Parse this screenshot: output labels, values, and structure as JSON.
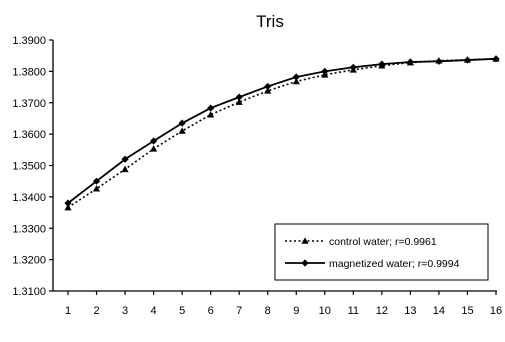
{
  "chart_data": {
    "type": "line",
    "title": "Tris",
    "xlabel": "",
    "ylabel": "",
    "categories": [
      "1",
      "2",
      "3",
      "4",
      "5",
      "6",
      "7",
      "8",
      "9",
      "10",
      "11",
      "12",
      "13",
      "14",
      "15",
      "16"
    ],
    "x": [
      1,
      2,
      3,
      4,
      5,
      6,
      7,
      8,
      9,
      10,
      11,
      12,
      13,
      14,
      15,
      16
    ],
    "ylim": [
      1.31,
      1.39
    ],
    "yticks": [
      "1.3100",
      "1.3200",
      "1.3300",
      "1.3400",
      "1.3500",
      "1.3600",
      "1.3700",
      "1.3800",
      "1.3900"
    ],
    "grid": false,
    "legend_position": "lower-right",
    "series": [
      {
        "name": "control water; r=0.9961",
        "style": "dotted",
        "marker": "triangle",
        "values": [
          1.3366,
          1.3426,
          1.3488,
          1.3553,
          1.361,
          1.3662,
          1.3702,
          1.3738,
          1.3768,
          1.3789,
          1.3805,
          1.3818,
          1.3828,
          1.3834,
          1.3837,
          1.384
        ]
      },
      {
        "name": "magnetized water; r=0.9994",
        "style": "solid",
        "marker": "diamond",
        "values": [
          1.338,
          1.345,
          1.352,
          1.3578,
          1.3635,
          1.3683,
          1.3718,
          1.3752,
          1.3782,
          1.38,
          1.3813,
          1.3823,
          1.383,
          1.3832,
          1.3836,
          1.384
        ]
      }
    ]
  }
}
